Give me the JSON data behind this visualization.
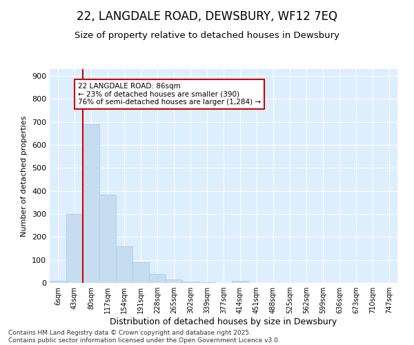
{
  "title": "22, LANGDALE ROAD, DEWSBURY, WF12 7EQ",
  "subtitle": "Size of property relative to detached houses in Dewsbury",
  "xlabel": "Distribution of detached houses by size in Dewsbury",
  "ylabel": "Number of detached properties",
  "annotation_title": "22 LANGDALE ROAD: 86sqm",
  "annotation_line1": "← 23% of detached houses are smaller (390)",
  "annotation_line2": "76% of semi-detached houses are larger (1,284) →",
  "footer_line1": "Contains HM Land Registry data © Crown copyright and database right 2025.",
  "footer_line2": "Contains public sector information licensed under the Open Government Licence v3.0.",
  "categories": [
    "6sqm",
    "43sqm",
    "80sqm",
    "117sqm",
    "154sqm",
    "191sqm",
    "228sqm",
    "265sqm",
    "302sqm",
    "339sqm",
    "377sqm",
    "414sqm",
    "451sqm",
    "488sqm",
    "525sqm",
    "562sqm",
    "599sqm",
    "636sqm",
    "673sqm",
    "710sqm",
    "747sqm"
  ],
  "values": [
    8,
    300,
    690,
    385,
    160,
    90,
    40,
    15,
    5,
    2,
    1,
    10,
    0,
    0,
    0,
    0,
    0,
    0,
    0,
    0,
    0
  ],
  "bar_color": "#c6dcf0",
  "bar_edge_color": "#a8c8e8",
  "highlight_color": "#cc0000",
  "annotation_box_color": "#ffffff",
  "annotation_box_edge": "#cc0000",
  "background_color": "#ddeeff",
  "ylim": [
    0,
    930
  ],
  "yticks": [
    0,
    100,
    200,
    300,
    400,
    500,
    600,
    700,
    800,
    900
  ],
  "highlight_bin_index": 2,
  "title_fontsize": 12,
  "subtitle_fontsize": 10
}
